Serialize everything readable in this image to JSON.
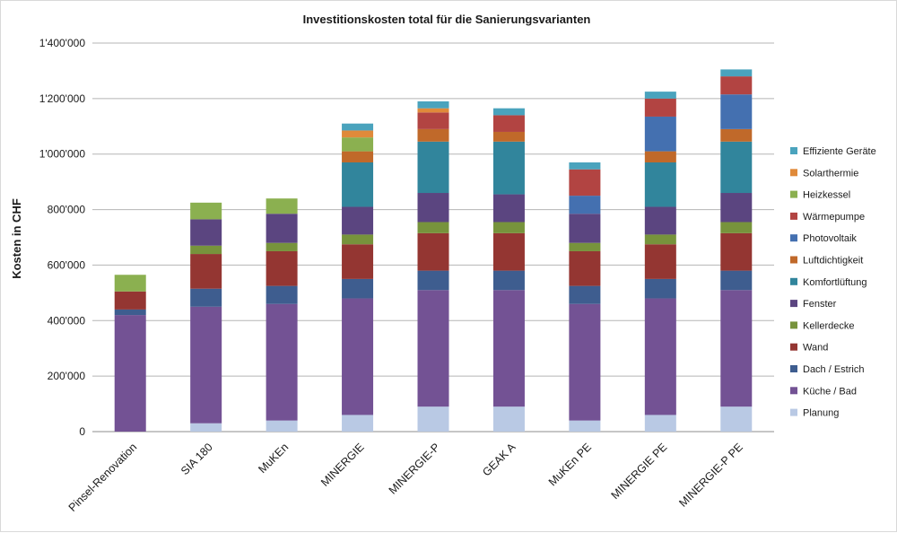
{
  "chart_data": {
    "type": "bar",
    "stacked": true,
    "title": "Investitionskosten total für die Sanierungsvarianten",
    "ylabel": "Kosten in CHF",
    "xlabel": "",
    "ylim": [
      0,
      1400000
    ],
    "yticks": [
      0,
      200000,
      400000,
      600000,
      800000,
      1000000,
      1200000,
      1400000
    ],
    "ytick_labels": [
      "0",
      "200'000",
      "400'000",
      "600'000",
      "800'000",
      "1'000'000",
      "1'200'000",
      "1'400'000"
    ],
    "grid": true,
    "legend_position": "right",
    "categories": [
      "Pinsel-Renovation",
      "SIA 180",
      "MuKEn",
      "MINERGIE",
      "MINERGIE-P",
      "GEAK A",
      "MuKEn PE",
      "MINERGIE PE",
      "MINERGIE-P PE"
    ],
    "series": [
      {
        "name": "Planung",
        "color": "#b9c9e4",
        "values": [
          0,
          30000,
          40000,
          60000,
          90000,
          90000,
          40000,
          60000,
          90000
        ]
      },
      {
        "name": "Küche / Bad",
        "color": "#735294",
        "values": [
          420000,
          420000,
          420000,
          420000,
          420000,
          420000,
          420000,
          420000,
          420000
        ]
      },
      {
        "name": "Dach / Estrich",
        "color": "#3e5d8f",
        "values": [
          20000,
          65000,
          65000,
          70000,
          70000,
          70000,
          65000,
          70000,
          70000
        ]
      },
      {
        "name": "Wand",
        "color": "#943632",
        "values": [
          65000,
          125000,
          125000,
          125000,
          135000,
          135000,
          125000,
          125000,
          135000
        ]
      },
      {
        "name": "Kellerdecke",
        "color": "#77933c",
        "values": [
          0,
          30000,
          30000,
          35000,
          40000,
          40000,
          30000,
          35000,
          40000
        ]
      },
      {
        "name": "Fenster",
        "color": "#5b4580",
        "values": [
          0,
          95000,
          105000,
          100000,
          105000,
          100000,
          105000,
          100000,
          105000
        ]
      },
      {
        "name": "Komfortlüftung",
        "color": "#31859c",
        "values": [
          0,
          0,
          0,
          160000,
          185000,
          190000,
          0,
          160000,
          185000
        ]
      },
      {
        "name": "Luftdichtigkeit",
        "color": "#c0692a",
        "values": [
          0,
          0,
          0,
          40000,
          45000,
          35000,
          0,
          40000,
          45000
        ]
      },
      {
        "name": "Photovoltaik",
        "color": "#4470b0",
        "values": [
          0,
          0,
          0,
          0,
          0,
          0,
          65000,
          125000,
          125000
        ]
      },
      {
        "name": "Wärmepumpe",
        "color": "#b24442",
        "values": [
          0,
          0,
          0,
          0,
          60000,
          60000,
          95000,
          65000,
          65000
        ]
      },
      {
        "name": "Heizkessel",
        "color": "#8bb050",
        "values": [
          60000,
          60000,
          55000,
          50000,
          0,
          0,
          0,
          0,
          0
        ]
      },
      {
        "name": "Solarthermie",
        "color": "#e08a3a",
        "values": [
          0,
          0,
          0,
          25000,
          15000,
          0,
          0,
          0,
          0
        ]
      },
      {
        "name": "Effiziente Geräte",
        "color": "#4aa3bd",
        "values": [
          0,
          0,
          0,
          25000,
          25000,
          25000,
          25000,
          25000,
          25000
        ]
      }
    ]
  }
}
